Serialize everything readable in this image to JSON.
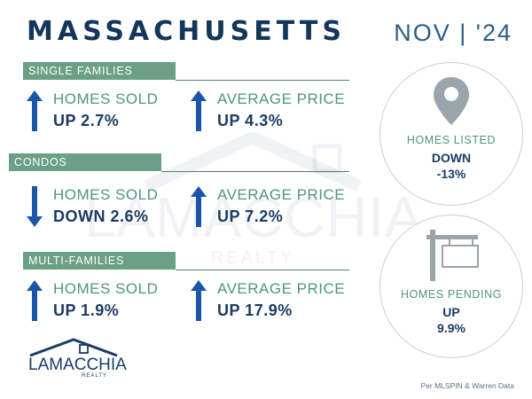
{
  "header": {
    "state": "MASSACHUSETTS",
    "date": "NOV | '24"
  },
  "watermark": {
    "text": "LAMACCHIA",
    "subtext": "REALTY"
  },
  "sections": [
    {
      "title": "SINGLE FAMILIES",
      "metrics": [
        {
          "label": "HOMES SOLD",
          "value": "UP 2.7%",
          "direction": "up"
        },
        {
          "label": "AVERAGE PRICE",
          "value": "UP 4.3%",
          "direction": "up"
        }
      ]
    },
    {
      "title": "CONDOS",
      "metrics": [
        {
          "label": "HOMES SOLD",
          "value": "DOWN 2.6%",
          "direction": "down"
        },
        {
          "label": "AVERAGE PRICE",
          "value": "UP 7.2%",
          "direction": "up"
        }
      ]
    },
    {
      "title": "MULTI-FAMILIES",
      "metrics": [
        {
          "label": "HOMES SOLD",
          "value": "UP 1.9%",
          "direction": "up"
        },
        {
          "label": "AVERAGE PRICE",
          "value": "UP 17.9%",
          "direction": "up"
        }
      ]
    }
  ],
  "listed": {
    "label": "HOMES LISTED",
    "line1": "DOWN",
    "line2": "-13%",
    "icon": "map-pin-icon"
  },
  "pending": {
    "label": "HOMES PENDING",
    "line1": "UP",
    "line2": "9.9%",
    "icon": "sign-post-icon"
  },
  "logo": {
    "text": "LAMACCHIA",
    "subtext": "REALTY"
  },
  "footnote": "Per MLSPIN & Warren Data",
  "colors": {
    "navy": "#1b3c64",
    "teal": "#4f9580",
    "bar": "#6b9f86",
    "arrow": "#1a56a8"
  }
}
